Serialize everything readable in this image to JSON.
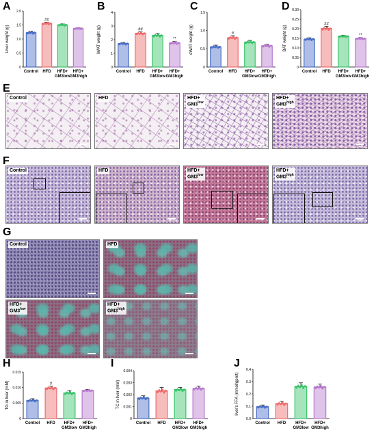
{
  "labels": {
    "A": "A",
    "B": "B",
    "C": "C",
    "D": "D",
    "E": "E",
    "F": "F",
    "G": "G",
    "H": "H",
    "I": "I",
    "J": "J"
  },
  "groups": [
    "Control",
    "HFD",
    "HFD+ GM3low",
    "HFD+ GM3high"
  ],
  "colors": {
    "control": "#4a6fc7",
    "hfd": "#ee6b6b",
    "low": "#39c46b",
    "high": "#b879cf"
  },
  "histology": {
    "control": "Control",
    "hfd": "HFD",
    "low_line1": "HFD+",
    "low_line2": "GM3",
    "low_sup": "low",
    "high_line1": "HFD+",
    "high_line2": "GM3",
    "high_sup": "high"
  },
  "chart_data": [
    {
      "id": "A",
      "type": "bar",
      "ylabel": "Liver weight (g)",
      "ylim": [
        0,
        2.0
      ],
      "yticks": [
        0,
        0.5,
        1.0,
        1.5,
        2.0
      ],
      "ytick_labels": [
        "0",
        "0.5",
        "1.0",
        "1.5",
        "2.0"
      ],
      "values": [
        1.22,
        1.55,
        1.5,
        1.37
      ],
      "errors": [
        0.06,
        0.05,
        0.04,
        0.03
      ],
      "signif": [
        "",
        "##",
        "",
        ""
      ]
    },
    {
      "id": "B",
      "type": "bar",
      "ylabel": "iWAT weight (g)",
      "ylim": [
        0,
        4
      ],
      "yticks": [
        0,
        1,
        2,
        3,
        4
      ],
      "ytick_labels": [
        "0",
        "1",
        "2",
        "3",
        "4"
      ],
      "values": [
        1.7,
        2.45,
        2.3,
        1.75
      ],
      "errors": [
        0.1,
        0.12,
        0.15,
        0.12
      ],
      "signif": [
        "",
        "##",
        "",
        "**"
      ]
    },
    {
      "id": "C",
      "type": "bar",
      "ylabel": "eWAT weight (g)",
      "ylim": [
        0,
        1.5
      ],
      "yticks": [
        0,
        0.5,
        1.0,
        1.5
      ],
      "ytick_labels": [
        "0",
        "0.5",
        "1.0",
        "1.5"
      ],
      "values": [
        0.55,
        0.8,
        0.68,
        0.58
      ],
      "errors": [
        0.05,
        0.06,
        0.05,
        0.05
      ],
      "signif": [
        "",
        "#",
        "",
        ""
      ]
    },
    {
      "id": "D",
      "type": "bar",
      "ylabel": "BAT weight (g)",
      "ylim": [
        0,
        0.3
      ],
      "yticks": [
        0,
        0.05,
        0.1,
        0.15,
        0.2,
        0.25,
        0.3
      ],
      "ytick_labels": [
        "0",
        "0.05",
        "0.10",
        "0.15",
        "0.20",
        "0.25",
        "0.30"
      ],
      "values": [
        0.145,
        0.2,
        0.16,
        0.148
      ],
      "errors": [
        0.008,
        0.012,
        0.006,
        0.006
      ],
      "signif": [
        "",
        "##",
        "",
        "**"
      ]
    },
    {
      "id": "H",
      "type": "bar",
      "ylabel": "TG in liver (mM)",
      "ylim": [
        0,
        0.015
      ],
      "yticks": [
        0,
        0.005,
        0.01,
        0.015
      ],
      "ytick_labels": [
        "0",
        "0.005",
        "0.010",
        "0.015"
      ],
      "values": [
        0.0058,
        0.0098,
        0.0082,
        0.009
      ],
      "errors": [
        0.0006,
        0.0007,
        0.0008,
        0.0004
      ],
      "signif": [
        "",
        "#",
        "",
        ""
      ]
    },
    {
      "id": "I",
      "type": "bar",
      "ylabel": "TC in liver (mM)",
      "ylim": [
        0,
        0.004
      ],
      "yticks": [
        0,
        0.001,
        0.002,
        0.003,
        0.004
      ],
      "ytick_labels": [
        "0",
        "0.001",
        "0.002",
        "0.003",
        "0.004"
      ],
      "values": [
        0.0017,
        0.0023,
        0.0024,
        0.0025
      ],
      "errors": [
        0.0002,
        0.0003,
        0.0002,
        0.0002
      ],
      "signif": [
        "",
        "",
        "",
        ""
      ]
    },
    {
      "id": "J",
      "type": "bar",
      "ylabel": "liver's FFA (mmol/gprot)",
      "ylim": [
        0,
        0.4
      ],
      "yticks": [
        0,
        0.1,
        0.2,
        0.3,
        0.4
      ],
      "ytick_labels": [
        "0.0",
        "0.1",
        "0.2",
        "0.3",
        "0.4"
      ],
      "values": [
        0.095,
        0.12,
        0.26,
        0.255
      ],
      "errors": [
        0.015,
        0.02,
        0.03,
        0.025
      ],
      "signif": [
        "",
        "",
        "",
        ""
      ]
    }
  ]
}
